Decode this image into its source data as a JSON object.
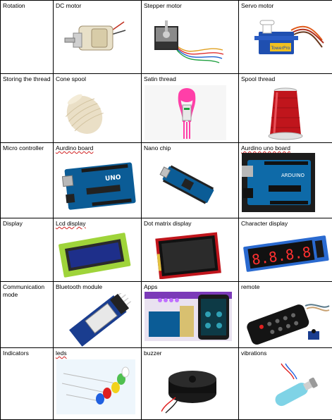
{
  "rows": [
    {
      "category": "Rotation",
      "items": [
        {
          "label": "DC motor",
          "icon": "dc-motor-icon"
        },
        {
          "label": "Stepper motor",
          "icon": "stepper-motor-icon"
        },
        {
          "label": "Servo motor",
          "icon": "servo-motor-icon"
        }
      ]
    },
    {
      "category": "Storing the thread",
      "items": [
        {
          "label": "Cone spool",
          "icon": "cone-spool-icon"
        },
        {
          "label": "Satin thread",
          "icon": "satin-thread-icon"
        },
        {
          "label": "Spool thread",
          "icon": "spool-thread-icon"
        }
      ]
    },
    {
      "category": "Micro controller",
      "items": [
        {
          "label": "Aurdino board",
          "icon": "arduino-board-icon"
        },
        {
          "label": "Nano chip",
          "icon": "nano-chip-icon"
        },
        {
          "label": "Aurdino uno board",
          "icon": "arduino-uno-icon"
        }
      ]
    },
    {
      "category": "Display",
      "items": [
        {
          "label": "Lcd display",
          "icon": "lcd-display-icon"
        },
        {
          "label": "Dot matrix display",
          "icon": "dot-matrix-display-icon"
        },
        {
          "label": "Character display",
          "icon": "character-display-icon"
        }
      ]
    },
    {
      "category": "Communication mode",
      "items": [
        {
          "label": "Bluetooth module",
          "icon": "bluetooth-module-icon"
        },
        {
          "label": "Apps",
          "icon": "apps-icon"
        },
        {
          "label": "remote",
          "icon": "remote-icon"
        }
      ]
    },
    {
      "category": "Indicators",
      "items": [
        {
          "label": "leds",
          "icon": "leds-icon"
        },
        {
          "label": "buzzer",
          "icon": "buzzer-icon"
        },
        {
          "label": "vibrations",
          "icon": "vibration-motor-icon"
        }
      ]
    }
  ],
  "image_texts": {
    "arduino_logo": "UNO",
    "arduino_brand": "ARDUINO",
    "character_display_digits": "8.8.8.8",
    "servo_brand": "TowerPro"
  },
  "colors": {
    "border": "#000000",
    "arduino_blue": "#0b5c96",
    "thread_red": "#c0151c",
    "thread_pink": "#ff3fa8",
    "lcd_green": "#9fd43a"
  }
}
